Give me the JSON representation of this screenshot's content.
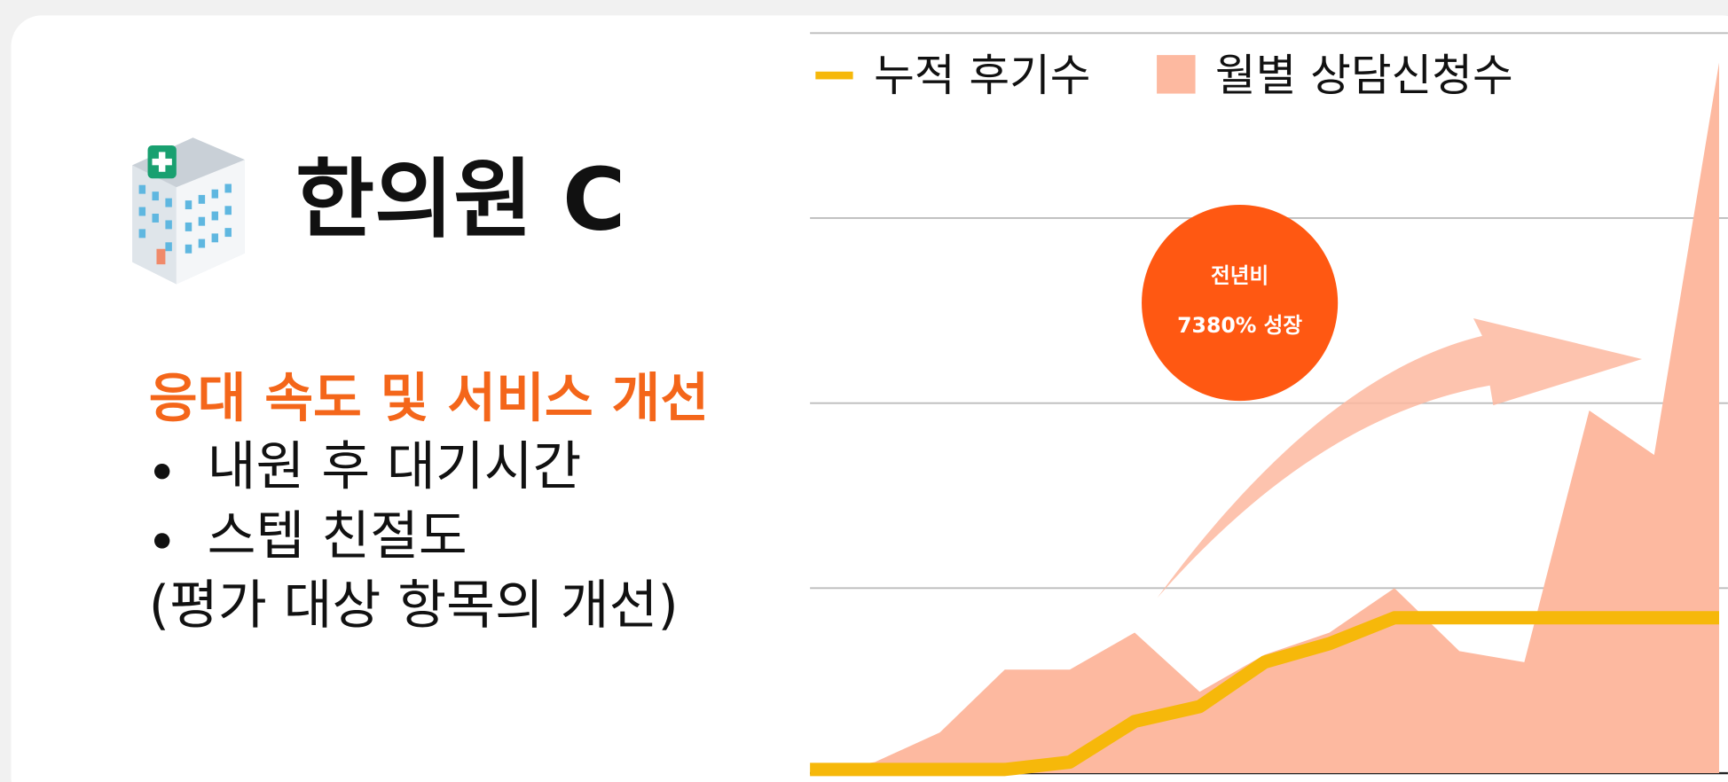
{
  "header": {
    "title": "한의원 C",
    "subtitle": "응대 속도 및 서비스 개선",
    "bullets": [
      "내원 후 대기시간",
      "스텝 친절도"
    ],
    "note": "(평가 대상 항목의 개선)"
  },
  "chart_data": {
    "type": "combo",
    "annotation": {
      "lines": [
        "전년비",
        "7380% 성장"
      ]
    },
    "categories": [
      null,
      null,
      null,
      null,
      null,
      null,
      null,
      null,
      null,
      null,
      null,
      null,
      null,
      null,
      null
    ],
    "series": [
      {
        "name": "월별 상담신청수",
        "type": "area",
        "color": "#fdb9a0",
        "values": [
          0,
          1.5,
          5.5,
          14,
          14,
          19,
          11,
          16,
          19,
          25,
          16.5,
          15,
          49,
          43,
          96
        ]
      },
      {
        "name": "누적 후기수",
        "type": "line",
        "color": "#f6b80a",
        "values": [
          0.5,
          0.5,
          0.5,
          0.5,
          1.5,
          7,
          9,
          15,
          17.5,
          21,
          21,
          21,
          21,
          21,
          21
        ]
      }
    ],
    "legend_order": [
      1,
      0
    ],
    "ylim": [
      0,
      100
    ],
    "yticks": [
      0,
      25,
      50,
      75,
      100
    ],
    "grid": true
  }
}
